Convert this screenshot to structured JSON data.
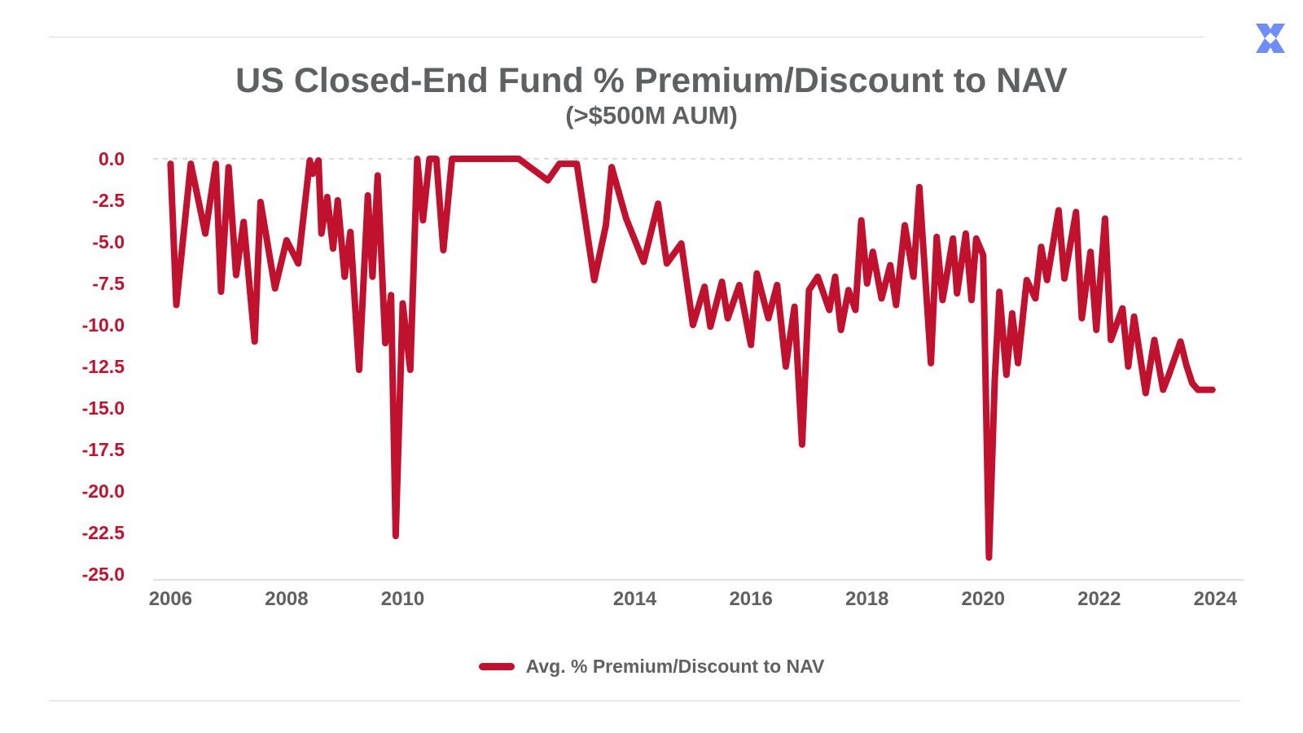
{
  "page": {
    "brand_icon": "x-cross-logo-icon",
    "colors": {
      "accent": "#c0122f",
      "text": "#5f6062",
      "logo": "#6f8cf7",
      "axis": "#d9d9d9"
    }
  },
  "chart_data": {
    "type": "line",
    "title": "US Closed-End Fund % Premium/Discount to NAV",
    "subtitle": "(>$500M AUM)",
    "xlabel": "",
    "ylabel": "",
    "xlim": [
      2005.7,
      2024.5
    ],
    "ylim": [
      -25,
      0
    ],
    "x_tick_labels": [
      "2006",
      "2008",
      "2010",
      "2014",
      "2016",
      "2018",
      "2020",
      "2022",
      "2024"
    ],
    "y_tick_labels": [
      "0.0",
      "-2.5",
      "-5.0",
      "-7.5",
      "-10.0",
      "-12.5",
      "-15.0",
      "-17.5",
      "-20.0",
      "-22.5",
      "-25.0"
    ],
    "grid": "dashed line at 0.0",
    "legend": "bottom-center",
    "series": [
      {
        "name": "Avg. % Premium/Discount to NAV",
        "color": "#c0122f",
        "x": [
          2006.0,
          2006.1,
          2006.35,
          2006.6,
          2006.78,
          2006.87,
          2007.0,
          2007.13,
          2007.26,
          2007.45,
          2007.55,
          2007.8,
          2008.0,
          2008.2,
          2008.4,
          2008.45,
          2008.55,
          2008.6,
          2008.7,
          2008.8,
          2008.88,
          2009.0,
          2009.1,
          2009.25,
          2009.4,
          2009.48,
          2009.57,
          2009.7,
          2009.8,
          2009.88,
          2010.0,
          2010.13,
          2010.25,
          2010.35,
          2010.46,
          2010.58,
          2010.7,
          2010.85,
          2011.0,
          2011.3,
          2011.7,
          2012.0,
          2012.5,
          2012.7,
          2013.0,
          2013.3,
          2013.5,
          2013.6,
          2013.85,
          2014.15,
          2014.4,
          2014.55,
          2014.8,
          2015.0,
          2015.2,
          2015.3,
          2015.5,
          2015.6,
          2015.8,
          2016.0,
          2016.1,
          2016.3,
          2016.45,
          2016.6,
          2016.75,
          2016.88,
          2017.0,
          2017.15,
          2017.35,
          2017.45,
          2017.55,
          2017.68,
          2017.8,
          2017.9,
          2018.0,
          2018.1,
          2018.25,
          2018.4,
          2018.5,
          2018.65,
          2018.8,
          2018.9,
          2019.1,
          2019.2,
          2019.3,
          2019.48,
          2019.55,
          2019.7,
          2019.8,
          2019.88,
          2020.0,
          2020.1,
          2020.2,
          2020.28,
          2020.4,
          2020.5,
          2020.6,
          2020.75,
          2020.9,
          2021.0,
          2021.1,
          2021.3,
          2021.4,
          2021.6,
          2021.7,
          2021.85,
          2021.95,
          2022.1,
          2022.2,
          2022.4,
          2022.5,
          2022.6,
          2022.8,
          2022.95,
          2023.1,
          2023.2,
          2023.3,
          2023.4,
          2023.5,
          2023.6,
          2023.7,
          2023.85,
          2023.95
        ],
        "values": [
          -0.3,
          -8.8,
          -0.3,
          -4.5,
          -0.3,
          -8.0,
          -0.5,
          -7.0,
          -3.8,
          -11.0,
          -2.6,
          -7.8,
          -4.9,
          -6.3,
          -0.1,
          -0.9,
          -0.1,
          -4.5,
          -2.3,
          -5.4,
          -2.5,
          -7.1,
          -4.4,
          -12.7,
          -2.2,
          -7.1,
          -1.0,
          -11.1,
          -8.2,
          -22.7,
          -8.7,
          -12.7,
          0.0,
          -3.7,
          0.0,
          0.0,
          -5.5,
          0.0,
          0.0,
          0.0,
          0.0,
          0.0,
          -1.3,
          -0.3,
          -0.3,
          -7.3,
          -4.0,
          -0.5,
          -3.6,
          -6.2,
          -2.7,
          -6.3,
          -5.1,
          -10.0,
          -7.7,
          -10.1,
          -7.4,
          -9.6,
          -7.6,
          -11.2,
          -6.9,
          -9.6,
          -7.6,
          -12.5,
          -8.9,
          -17.2,
          -7.9,
          -7.1,
          -9.1,
          -7.1,
          -10.3,
          -7.9,
          -9.1,
          -3.7,
          -7.5,
          -5.6,
          -8.4,
          -6.4,
          -8.8,
          -4.0,
          -7.1,
          -1.7,
          -12.3,
          -4.7,
          -8.5,
          -4.8,
          -8.1,
          -4.5,
          -8.5,
          -4.8,
          -5.8,
          -24.0,
          -13.3,
          -8.0,
          -13.0,
          -9.3,
          -12.3,
          -7.3,
          -8.4,
          -5.3,
          -7.3,
          -3.1,
          -7.2,
          -3.2,
          -9.6,
          -5.6,
          -10.3,
          -3.6,
          -10.9,
          -9.0,
          -12.5,
          -9.5,
          -14.1,
          -10.9,
          -13.9,
          -13.0,
          -12.0,
          -11.0,
          -12.4,
          -13.5,
          -13.9,
          -13.9,
          -13.9
        ]
      }
    ]
  }
}
